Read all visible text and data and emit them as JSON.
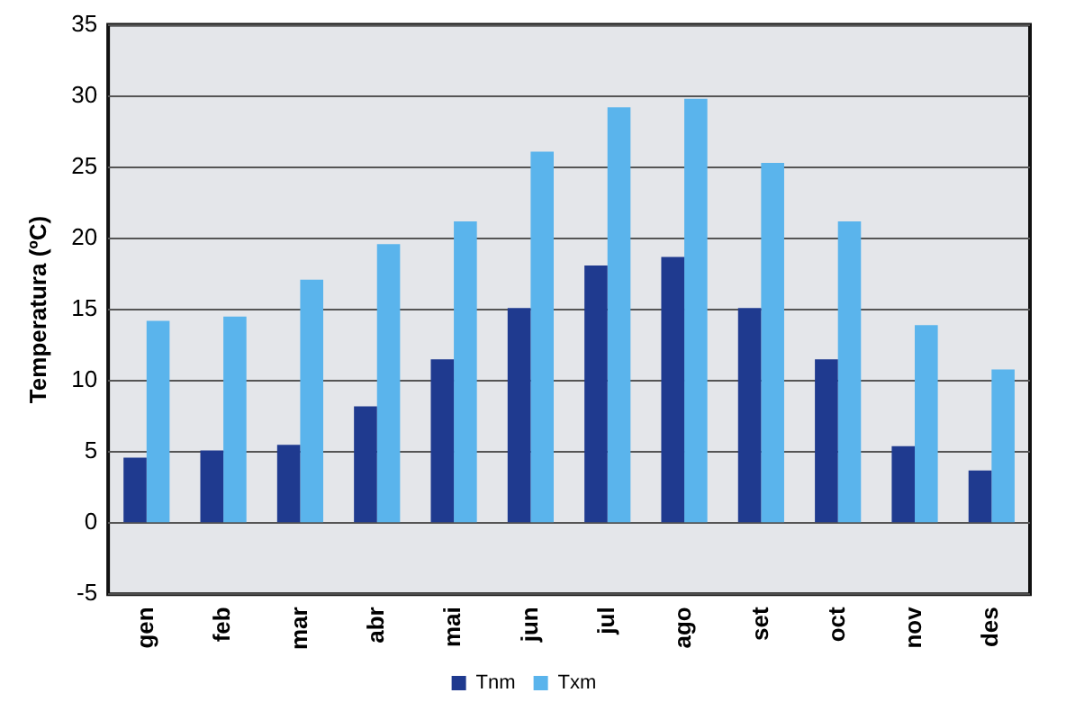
{
  "chart_data": {
    "type": "bar",
    "ylabel": "Temperatura (ºC)",
    "categories": [
      "gen",
      "feb",
      "mar",
      "abr",
      "mai",
      "jun",
      "jul",
      "ago",
      "set",
      "oct",
      "nov",
      "des"
    ],
    "series": [
      {
        "name": "Tnm",
        "color": "#1f3a8f",
        "values": [
          4.6,
          5.1,
          5.5,
          8.2,
          11.5,
          15.1,
          18.1,
          18.7,
          15.1,
          11.5,
          5.4,
          3.7
        ]
      },
      {
        "name": "Txm",
        "color": "#5ab4ec",
        "values": [
          14.2,
          14.5,
          17.1,
          19.6,
          21.2,
          26.1,
          29.2,
          29.8,
          25.3,
          21.2,
          13.9,
          10.8
        ]
      }
    ],
    "ylim": [
      -5,
      35
    ],
    "yticks": [
      -5,
      0,
      5,
      10,
      15,
      20,
      25,
      30,
      35
    ],
    "grid": "y",
    "legend": "bottom"
  }
}
